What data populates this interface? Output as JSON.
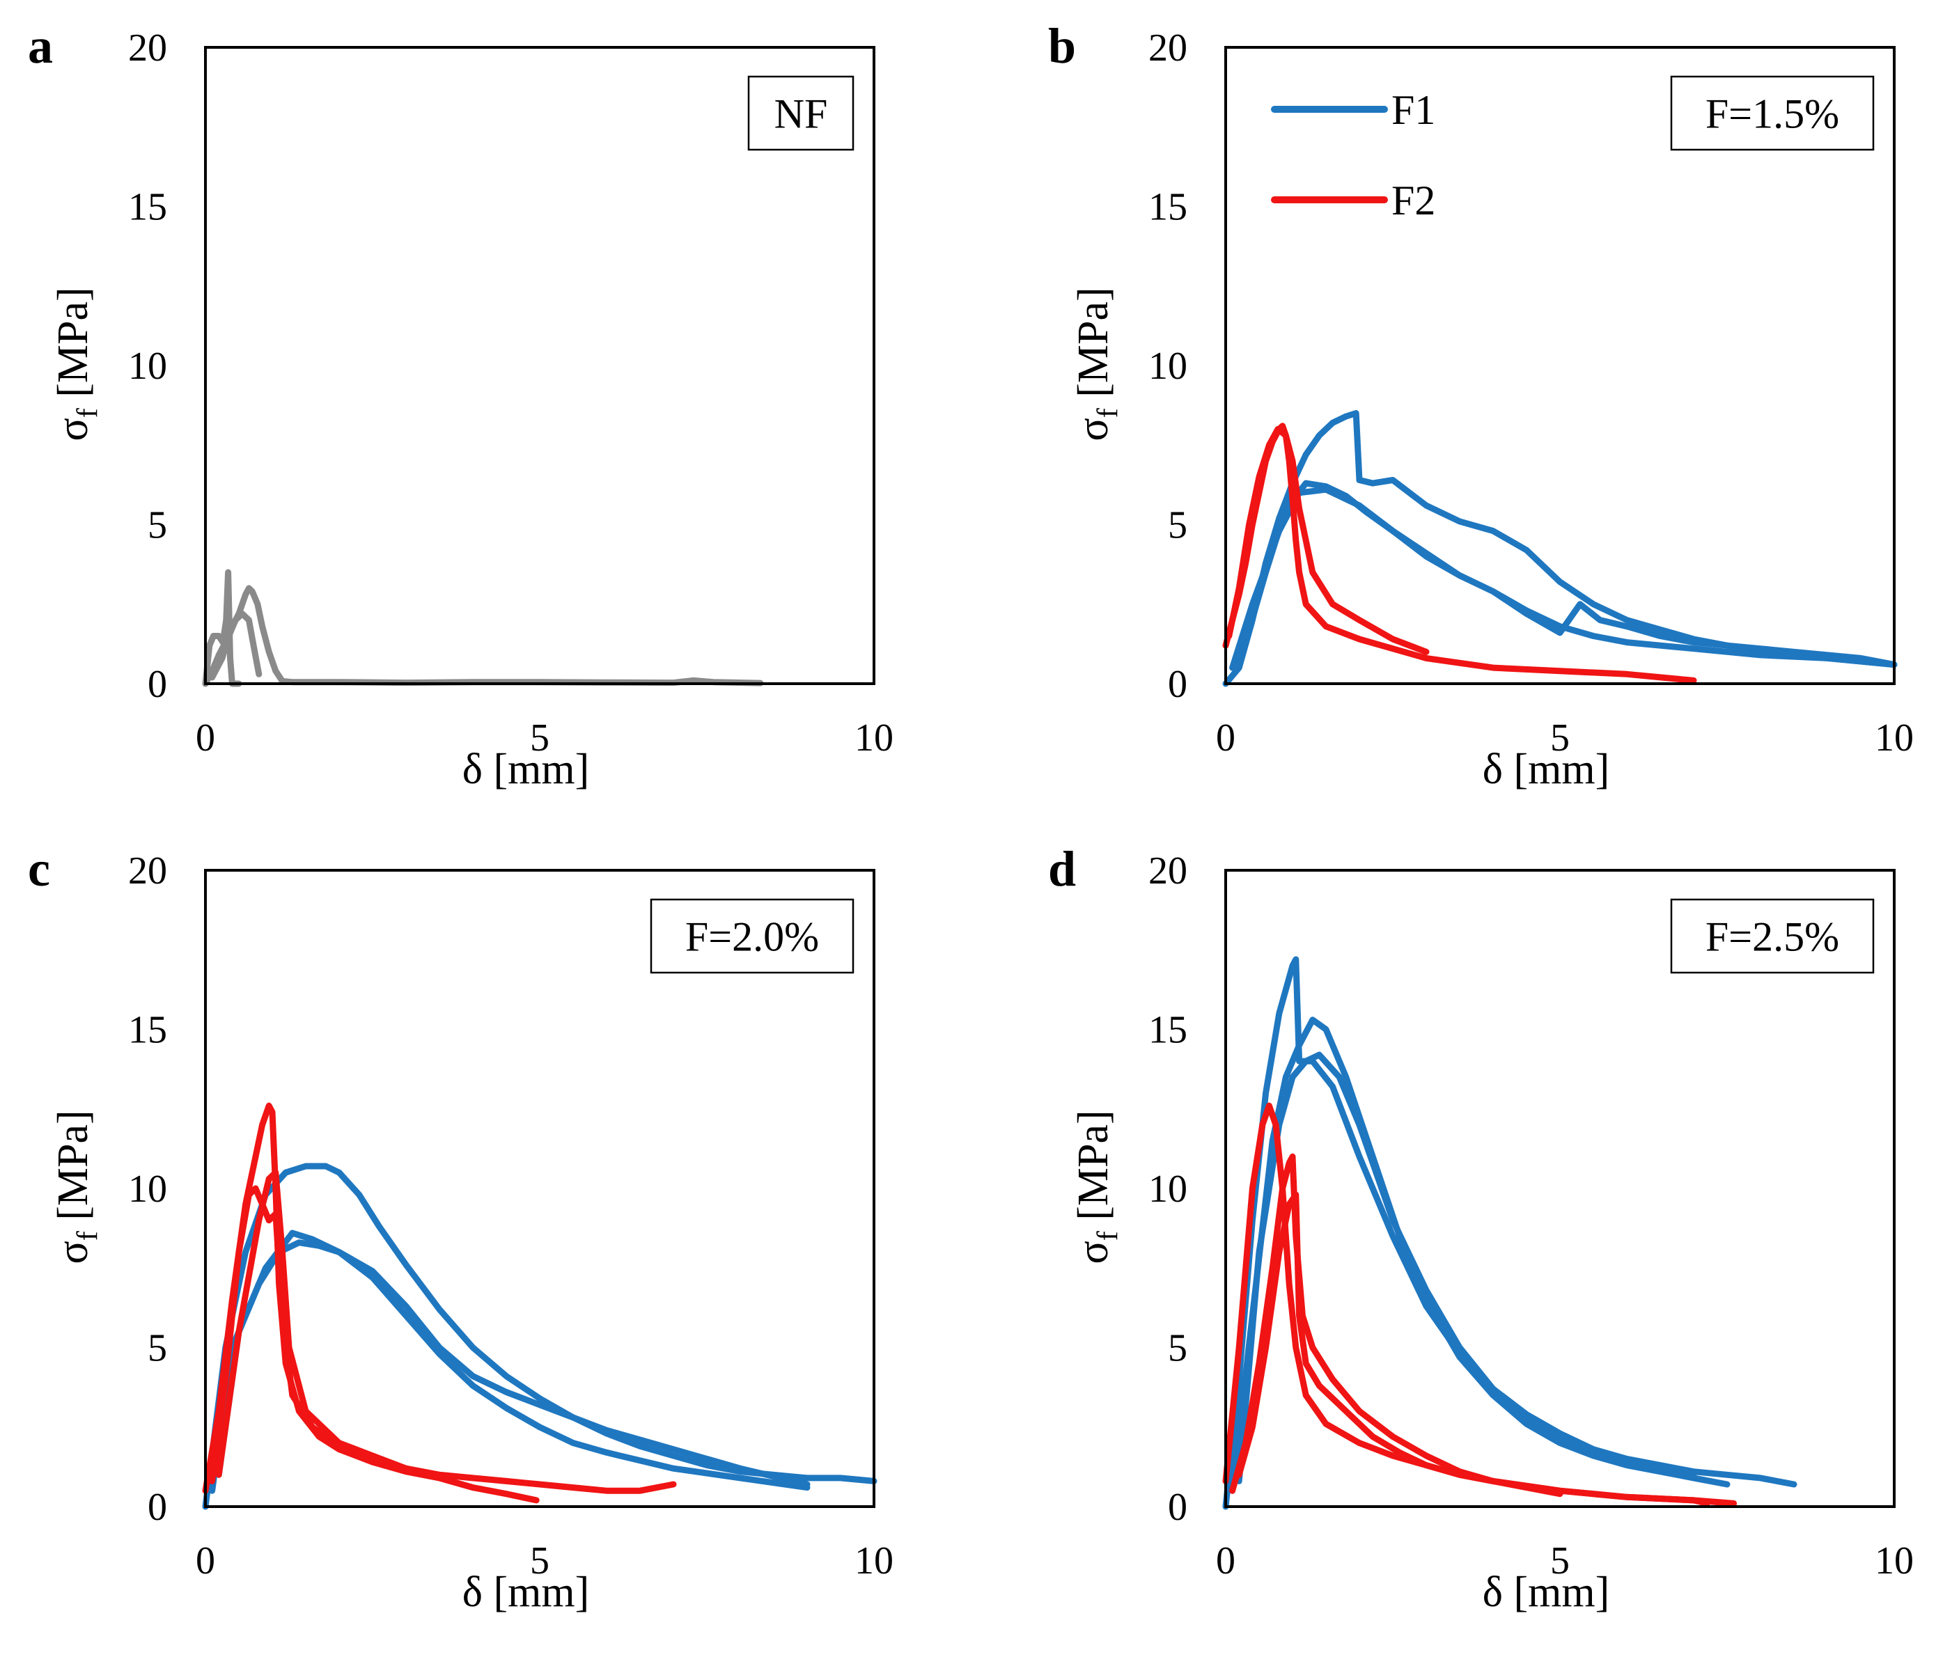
{
  "colors": {
    "F1": "#1f77c0",
    "F2": "#f01414",
    "NF": "#8a8a8a"
  },
  "axes_common": {
    "xlabel_prefix": "δ [mm]",
    "ylabel": "σ",
    "ylabel_sub": "f",
    "ylabel_unit": " [MPa]",
    "xlim": [
      0,
      10
    ],
    "ylim": [
      0,
      20
    ],
    "xticks": [
      0,
      5,
      10
    ],
    "yticks": [
      0,
      5,
      10,
      15,
      20
    ]
  },
  "legend": {
    "F1": "F1",
    "F2": "F2"
  },
  "chart_data": [
    {
      "panel": "a",
      "type": "line",
      "annotation": "NF",
      "xlabel": "δ [mm]",
      "ylabel": "σf [MPa]",
      "xlim": [
        0,
        10
      ],
      "ylim": [
        0,
        20
      ],
      "series": [
        {
          "group": "NF",
          "x": [
            0,
            0.06,
            0.12,
            0.2,
            0.26,
            0.31,
            0.34,
            0.37,
            0.4,
            0.5
          ],
          "y": [
            0,
            1.2,
            1.5,
            1.5,
            1.3,
            2.0,
            3.5,
            0.8,
            0,
            0
          ]
        },
        {
          "group": "NF",
          "x": [
            0,
            0.1,
            0.2,
            0.3,
            0.4,
            0.5,
            0.6,
            0.65,
            0.7,
            0.78,
            0.85,
            0.95,
            1.05,
            1.15,
            1.3,
            2,
            3,
            4,
            5,
            6,
            7,
            7.3,
            7.6,
            8.3
          ],
          "y": [
            0,
            0.4,
            0.9,
            1.3,
            1.8,
            2.2,
            2.8,
            3.0,
            2.9,
            2.5,
            1.8,
            1.0,
            0.4,
            0.08,
            0.05,
            0.05,
            0.03,
            0.05,
            0.05,
            0.04,
            0.03,
            0.1,
            0.05,
            0.02
          ]
        },
        {
          "group": "NF",
          "x": [
            0.1,
            0.25,
            0.35,
            0.45,
            0.55,
            0.65,
            0.72,
            0.8
          ],
          "y": [
            0.2,
            0.8,
            1.5,
            2.0,
            2.2,
            2.0,
            1.2,
            0.3
          ]
        }
      ]
    },
    {
      "panel": "b",
      "type": "line",
      "annotation": "F=1.5%",
      "xlabel": "δ [mm]",
      "ylabel": "σf [MPa]",
      "xlim": [
        0,
        10
      ],
      "ylim": [
        0,
        20
      ],
      "legend": [
        "F1",
        "F2"
      ],
      "series": [
        {
          "name": "F1",
          "x": [
            0,
            0.2,
            0.4,
            0.6,
            0.8,
            1.0,
            1.2,
            1.4,
            1.6,
            1.8,
            1.95,
            2.0,
            2.2,
            2.5,
            3,
            3.5,
            4,
            4.5,
            5,
            5.5,
            6,
            6.5,
            7,
            7.5,
            8,
            8.5,
            9,
            9.5,
            10
          ],
          "y": [
            0,
            0.5,
            2.0,
            3.8,
            5.2,
            6.3,
            7.2,
            7.8,
            8.2,
            8.4,
            8.5,
            6.4,
            6.3,
            6.4,
            5.6,
            5.1,
            4.8,
            4.2,
            3.2,
            2.5,
            2.0,
            1.7,
            1.4,
            1.2,
            1.1,
            1.0,
            0.9,
            0.8,
            0.6
          ]
        },
        {
          "name": "F1",
          "x": [
            0.1,
            0.4,
            0.8,
            1.1,
            1.5,
            2.0,
            2.5,
            3.0,
            3.5,
            4.0,
            4.5,
            5.0,
            5.5,
            6,
            7,
            8,
            9,
            10
          ],
          "y": [
            0.5,
            2.5,
            4.8,
            6.0,
            6.1,
            5.6,
            4.8,
            4.1,
            3.4,
            2.9,
            2.3,
            1.8,
            1.5,
            1.3,
            1.1,
            0.9,
            0.8,
            0.6
          ]
        },
        {
          "name": "F1",
          "x": [
            0.2,
            0.6,
            0.9,
            1.2,
            1.5,
            1.8,
            2.1,
            2.5,
            3.0,
            3.5,
            4.0,
            4.5,
            5.0,
            5.3,
            5.6,
            6,
            6.5,
            7,
            7.5,
            8,
            8.5,
            9,
            9.5,
            10
          ],
          "y": [
            0.6,
            3.5,
            5.5,
            6.3,
            6.2,
            5.9,
            5.4,
            4.8,
            4.0,
            3.4,
            2.9,
            2.2,
            1.6,
            2.5,
            2.0,
            1.8,
            1.5,
            1.3,
            1.2,
            1.0,
            0.9,
            0.8,
            0.7,
            0.6
          ]
        },
        {
          "name": "F2",
          "x": [
            0,
            0.1,
            0.2,
            0.3,
            0.4,
            0.5,
            0.6,
            0.7,
            0.8,
            0.85,
            0.9,
            0.95,
            1.0,
            1.05,
            1.1,
            1.2,
            1.5,
            2,
            3,
            4,
            5,
            6,
            7
          ],
          "y": [
            1.2,
            2.0,
            2.8,
            3.8,
            5.0,
            6.0,
            7.0,
            7.6,
            8.0,
            8.1,
            7.8,
            7.0,
            5.8,
            4.5,
            3.5,
            2.5,
            1.8,
            1.4,
            0.8,
            0.5,
            0.4,
            0.3,
            0.1
          ]
        },
        {
          "name": "F2",
          "x": [
            0.05,
            0.2,
            0.35,
            0.5,
            0.65,
            0.78,
            0.9,
            1.0,
            1.1,
            1.3,
            1.6,
            2.0,
            2.5,
            3.0
          ],
          "y": [
            1.5,
            3.0,
            5.0,
            6.5,
            7.5,
            8.0,
            7.8,
            7.0,
            5.5,
            3.5,
            2.5,
            2.0,
            1.4,
            1.0
          ]
        }
      ]
    },
    {
      "panel": "c",
      "type": "line",
      "annotation": "F=2.0%",
      "xlabel": "δ [mm]",
      "ylabel": "σf [MPa]",
      "xlim": [
        0,
        10
      ],
      "ylim": [
        0,
        20
      ],
      "series": [
        {
          "name": "F1",
          "x": [
            0,
            0.3,
            0.6,
            0.9,
            1.2,
            1.5,
            1.8,
            2.0,
            2.3,
            2.6,
            3.0,
            3.5,
            4.0,
            4.5,
            5.0,
            5.5,
            6.0,
            6.5,
            7.0,
            7.5,
            8.0,
            8.5,
            9.0,
            9.5,
            10
          ],
          "y": [
            0,
            5.0,
            8.0,
            9.8,
            10.5,
            10.7,
            10.7,
            10.5,
            9.8,
            8.8,
            7.6,
            6.2,
            5.0,
            4.1,
            3.4,
            2.8,
            2.3,
            1.9,
            1.6,
            1.3,
            1.1,
            1.0,
            0.9,
            0.9,
            0.8
          ]
        },
        {
          "name": "F1",
          "x": [
            0.1,
            0.4,
            0.8,
            1.1,
            1.4,
            1.7,
            2.0,
            2.5,
            3.0,
            3.5,
            4.0,
            4.5,
            5.0,
            5.5,
            6.0,
            7.0,
            8.0,
            9.0
          ],
          "y": [
            0.5,
            5.0,
            7.0,
            8.0,
            8.3,
            8.2,
            8.0,
            7.2,
            6.0,
            4.8,
            3.8,
            3.1,
            2.5,
            2.0,
            1.7,
            1.2,
            0.9,
            0.6
          ]
        },
        {
          "name": "F1",
          "x": [
            0.2,
            0.5,
            0.9,
            1.3,
            1.6,
            2.0,
            2.5,
            3.0,
            3.5,
            4.0,
            4.5,
            5.0,
            5.5,
            6.0,
            6.5,
            7.0,
            8.0,
            9.0
          ],
          "y": [
            1.0,
            5.5,
            7.5,
            8.6,
            8.4,
            8.0,
            7.4,
            6.3,
            5.0,
            4.1,
            3.6,
            3.2,
            2.8,
            2.4,
            2.1,
            1.8,
            1.2,
            0.7
          ]
        },
        {
          "name": "F2",
          "x": [
            0,
            0.2,
            0.4,
            0.6,
            0.75,
            0.85,
            0.95,
            1.0,
            1.05,
            1.1,
            1.2,
            1.4,
            1.7,
            2.0,
            2.5,
            3.0,
            3.5,
            4.0,
            4.5,
            4.95
          ],
          "y": [
            0.5,
            3.0,
            6.5,
            9.5,
            11.0,
            12.0,
            12.6,
            12.4,
            10.0,
            7.0,
            4.5,
            3.0,
            2.2,
            1.8,
            1.4,
            1.1,
            0.9,
            0.6,
            0.4,
            0.2
          ]
        },
        {
          "name": "F2",
          "x": [
            0.1,
            0.3,
            0.5,
            0.65,
            0.75,
            0.85,
            0.95,
            1.05,
            1.15,
            1.3,
            1.6,
            2.0,
            2.5,
            3.0,
            3.5,
            4.0,
            4.5,
            5.0,
            5.5,
            6.0,
            6.5,
            7.0
          ],
          "y": [
            0.8,
            4.0,
            8.0,
            9.8,
            10.0,
            9.5,
            9.0,
            9.2,
            6.0,
            3.5,
            2.5,
            1.9,
            1.5,
            1.2,
            1.0,
            0.9,
            0.8,
            0.7,
            0.6,
            0.5,
            0.5,
            0.7
          ]
        },
        {
          "name": "F2",
          "x": [
            0.2,
            0.5,
            0.8,
            0.95,
            1.05,
            1.15,
            1.25,
            1.5,
            2.0,
            2.5,
            3.0,
            3.5,
            4.0
          ],
          "y": [
            1.0,
            5.5,
            9.0,
            10.3,
            10.5,
            8.0,
            5.0,
            3.0,
            2.0,
            1.6,
            1.2,
            0.9,
            0.6
          ]
        }
      ]
    },
    {
      "panel": "d",
      "type": "line",
      "annotation": "F=2.5%",
      "xlabel": "δ [mm]",
      "ylabel": "σf [MPa]",
      "xlim": [
        0,
        10
      ],
      "ylim": [
        0,
        20
      ],
      "series": [
        {
          "name": "F1",
          "x": [
            0,
            0.2,
            0.4,
            0.6,
            0.8,
            1.0,
            1.05,
            1.1,
            1.3,
            1.6,
            2.0,
            2.5,
            3.0,
            3.5,
            4.0,
            4.5,
            5.0,
            5.5,
            6.0,
            6.5,
            7.0,
            7.5,
            8.0,
            8.5
          ],
          "y": [
            0,
            4.0,
            9.0,
            13.0,
            15.5,
            17.0,
            17.2,
            14.0,
            14.0,
            13.2,
            11.0,
            8.5,
            6.3,
            4.8,
            3.7,
            2.9,
            2.3,
            1.8,
            1.5,
            1.3,
            1.1,
            1.0,
            0.9,
            0.7
          ]
        },
        {
          "name": "F1",
          "x": [
            0.1,
            0.4,
            0.7,
            0.9,
            1.1,
            1.3,
            1.5,
            1.8,
            2.2,
            2.6,
            3.0,
            3.5,
            4.0,
            4.5,
            5.0,
            5.5,
            6.0,
            7.0,
            7.5
          ],
          "y": [
            0.5,
            6.0,
            11.5,
            13.5,
            14.5,
            15.3,
            15.0,
            13.5,
            11.0,
            8.5,
            6.5,
            4.7,
            3.5,
            2.6,
            2.0,
            1.6,
            1.3,
            0.9,
            0.7
          ]
        },
        {
          "name": "F1",
          "x": [
            0.2,
            0.5,
            0.8,
            1.0,
            1.2,
            1.4,
            1.7,
            2.0,
            2.5,
            3.0,
            3.5,
            4.0,
            4.5,
            5.0,
            6.0,
            7.0
          ],
          "y": [
            0.8,
            8.0,
            12.0,
            13.5,
            14.0,
            14.2,
            13.5,
            12.0,
            9.0,
            6.8,
            5.0,
            3.7,
            2.8,
            2.1,
            1.4,
            1.0
          ]
        },
        {
          "name": "F2",
          "x": [
            0,
            0.2,
            0.4,
            0.55,
            0.65,
            0.75,
            0.85,
            0.95,
            1.05,
            1.2,
            1.5,
            2.0,
            2.5,
            3.0,
            3.5,
            4.0,
            4.5,
            5.0
          ],
          "y": [
            0.8,
            5.0,
            10.0,
            12.0,
            12.6,
            12.0,
            10.0,
            7.0,
            5.0,
            3.5,
            2.6,
            2.0,
            1.6,
            1.3,
            1.0,
            0.8,
            0.6,
            0.4
          ]
        },
        {
          "name": "F2",
          "x": [
            0.1,
            0.3,
            0.5,
            0.7,
            0.85,
            0.95,
            1.0,
            1.05,
            1.15,
            1.3,
            1.6,
            2.0,
            2.5,
            3.0,
            3.5,
            4.0,
            5.0,
            6.0,
            7.0,
            7.6
          ],
          "y": [
            0.5,
            2.0,
            4.5,
            7.5,
            10.0,
            10.8,
            11.0,
            8.5,
            6.0,
            5.0,
            4.0,
            3.0,
            2.2,
            1.6,
            1.1,
            0.8,
            0.5,
            0.3,
            0.2,
            0.1
          ]
        },
        {
          "name": "F2",
          "x": [
            0.2,
            0.4,
            0.6,
            0.8,
            0.95,
            1.05,
            1.1,
            1.2,
            1.4,
            1.8,
            2.2,
            2.6,
            3.0,
            3.5,
            4.0,
            5.0,
            6.0,
            7.0,
            7.2
          ],
          "y": [
            1.0,
            2.5,
            5.0,
            8.0,
            9.5,
            9.8,
            6.0,
            4.5,
            3.8,
            3.0,
            2.2,
            1.7,
            1.3,
            1.0,
            0.8,
            0.5,
            0.3,
            0.2,
            0.1
          ]
        }
      ]
    }
  ]
}
